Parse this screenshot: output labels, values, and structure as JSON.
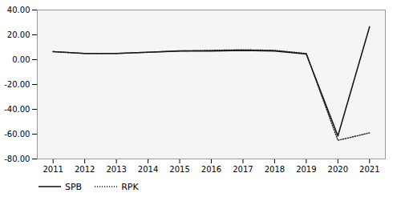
{
  "chart_data": {
    "type": "line",
    "x": [
      2011,
      2012,
      2013,
      2014,
      2015,
      2016,
      2017,
      2018,
      2019,
      2020,
      2021
    ],
    "series": [
      {
        "name": "SPB",
        "color": "#1a1a1a",
        "line_style": "solid",
        "values": [
          6.5,
          5.0,
          5.0,
          6.0,
          7.0,
          7.0,
          7.5,
          7.0,
          4.5,
          -61.5,
          26.5
        ]
      },
      {
        "name": "RPK",
        "color": "#1a1a1a",
        "line_style": "dotted",
        "values": [
          6.5,
          5.0,
          5.0,
          6.0,
          7.0,
          7.5,
          8.0,
          7.5,
          5.0,
          -65.0,
          -59.0
        ]
      }
    ],
    "xlim": [
      2010.5,
      2021.5
    ],
    "xticks": [
      2011,
      2012,
      2013,
      2014,
      2015,
      2016,
      2017,
      2018,
      2019,
      2020,
      2021
    ],
    "ylim": [
      -80,
      40
    ],
    "yticks": [
      {
        "value": -80,
        "label": "-80.00"
      },
      {
        "value": -60,
        "label": "-60.00"
      },
      {
        "value": -40,
        "label": "-40.00"
      },
      {
        "value": -20,
        "label": "-20.00"
      },
      {
        "value": 0,
        "label": "0.00"
      },
      {
        "value": 20,
        "label": "20.00"
      },
      {
        "value": 40,
        "label": "40.00"
      }
    ],
    "grid": true,
    "legend": "lower left"
  }
}
